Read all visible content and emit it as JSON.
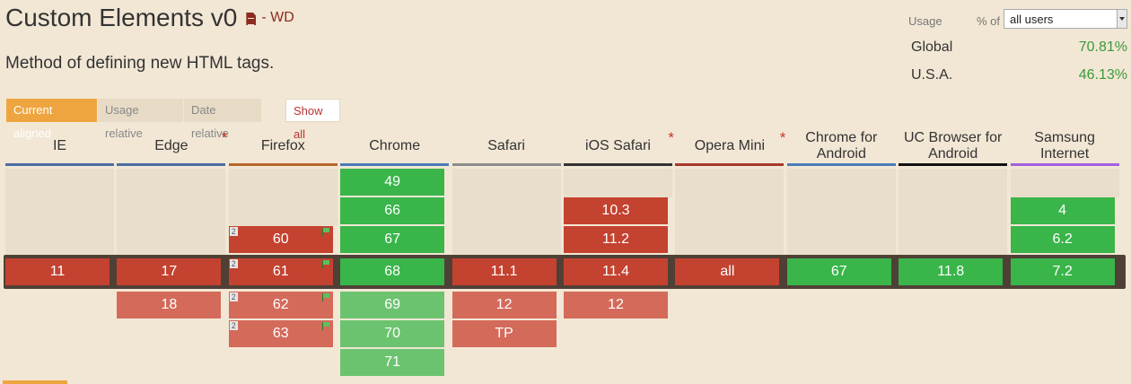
{
  "title": "Custom Elements v0",
  "status_label": "- WD",
  "description": "Method of defining new HTML tags.",
  "usage": {
    "usage_label": "Usage",
    "pct_of_label": "% of",
    "selected_audience": "all users",
    "rows": [
      {
        "label": "Global",
        "value": "70.81%"
      },
      {
        "label": "U.S.A.",
        "value": "46.13%"
      }
    ]
  },
  "view_buttons": {
    "current_aligned": "Current aligned",
    "usage_relative": "Usage relative",
    "date_relative": "Date relative",
    "show_all": "Show all"
  },
  "colors": {
    "supported": "#39b54a",
    "unsupported": "#c44230",
    "supported_future": "#6cc36f",
    "unsupported_future": "#d46a5a"
  },
  "browsers": [
    {
      "name": "IE",
      "bar_color": "#4a6ea2",
      "asterisk": "",
      "past": [],
      "current": {
        "v": "11",
        "s": "n"
      },
      "future": []
    },
    {
      "name": "Edge",
      "bar_color": "#4a6ea2",
      "asterisk": "*",
      "past": [],
      "current": {
        "v": "17",
        "s": "n"
      },
      "future": [
        {
          "v": "18",
          "s": "n"
        }
      ]
    },
    {
      "name": "Firefox",
      "bar_color": "#b7652a",
      "asterisk": "",
      "past": [
        {
          "v": "60",
          "s": "n",
          "note": "2",
          "flag": true
        }
      ],
      "current": {
        "v": "61",
        "s": "n",
        "note": "2",
        "flag": true
      },
      "future": [
        {
          "v": "62",
          "s": "n",
          "note": "2",
          "flag": true
        },
        {
          "v": "63",
          "s": "n",
          "note": "2",
          "flag": true
        }
      ]
    },
    {
      "name": "Chrome",
      "bar_color": "#4a7cb8",
      "asterisk": "",
      "past": [
        {
          "v": "49",
          "s": "y"
        },
        {
          "v": "66",
          "s": "y"
        },
        {
          "v": "67",
          "s": "y"
        }
      ],
      "current": {
        "v": "68",
        "s": "y"
      },
      "future": [
        {
          "v": "69",
          "s": "y"
        },
        {
          "v": "70",
          "s": "y"
        },
        {
          "v": "71",
          "s": "y"
        }
      ]
    },
    {
      "name": "Safari",
      "bar_color": "#8c8c8c",
      "asterisk": "",
      "past": [],
      "current": {
        "v": "11.1",
        "s": "n"
      },
      "future": [
        {
          "v": "12",
          "s": "n"
        },
        {
          "v": "TP",
          "s": "n"
        }
      ]
    },
    {
      "name": "iOS Safari",
      "bar_color": "#333333",
      "asterisk": "*",
      "past": [
        {
          "v": "10.3",
          "s": "n"
        },
        {
          "v": "11.2",
          "s": "n"
        }
      ],
      "current": {
        "v": "11.4",
        "s": "n"
      },
      "future": [
        {
          "v": "12",
          "s": "n"
        }
      ]
    },
    {
      "name": "Opera Mini",
      "bar_color": "#a8382c",
      "asterisk": "*",
      "past": [],
      "current": {
        "v": "all",
        "s": "n"
      },
      "future": []
    },
    {
      "name": "Chrome for Android",
      "bar_color": "#4a7cb8",
      "asterisk": "",
      "past": [],
      "current": {
        "v": "67",
        "s": "y"
      },
      "future": []
    },
    {
      "name": "UC Browser for Android",
      "bar_color": "#111111",
      "asterisk": "",
      "past": [],
      "current": {
        "v": "11.8",
        "s": "y"
      },
      "future": []
    },
    {
      "name": "Samsung Internet",
      "bar_color": "#a35fe0",
      "asterisk": "",
      "past": [
        {
          "v": "4",
          "s": "y"
        },
        {
          "v": "6.2",
          "s": "y"
        }
      ],
      "current": {
        "v": "7.2",
        "s": "y"
      },
      "future": []
    }
  ]
}
